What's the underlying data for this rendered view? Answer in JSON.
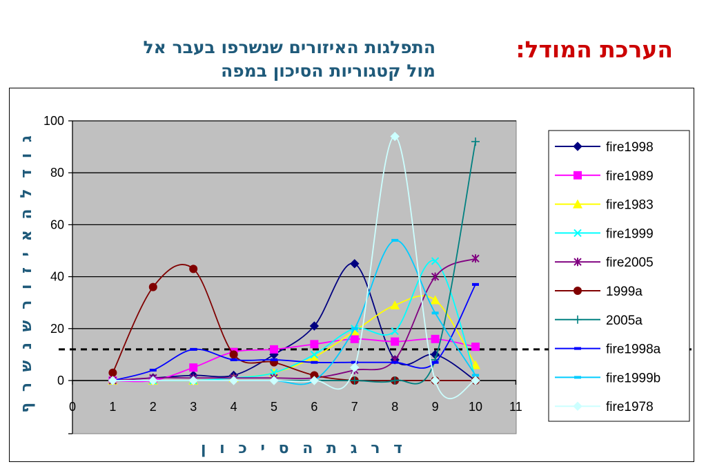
{
  "slide": {
    "title": "הערכת המודל:",
    "subtitle_line1": "התפלגות האיזורים שנשרפו בעבר אל",
    "subtitle_line2": "מול קטגוריות הסיכון במפה"
  },
  "chart_data": {
    "type": "line",
    "xlabel": "ד ר ג ת   ה ס י כ ו ן",
    "ylabel": "ג ו ד ל   ה א י ז ו ר   ש נ ש ר ף",
    "xlim": [
      0,
      11
    ],
    "ylim": [
      0,
      100
    ],
    "x_ticks": [
      "0",
      "1",
      "2",
      "3",
      "4",
      "5",
      "6",
      "7",
      "8",
      "9",
      "10",
      "11"
    ],
    "y_ticks": [
      "0",
      "20",
      "40",
      "60",
      "80",
      "100"
    ],
    "grid": true,
    "plot_background": "#c0c0c0",
    "legend_position": "right",
    "reference_line": {
      "y": 12,
      "style": "dashed",
      "color": "#000000"
    },
    "x": [
      1,
      2,
      3,
      4,
      5,
      6,
      7,
      8,
      9,
      10
    ],
    "series": [
      {
        "name": "fire1998",
        "color": "#000080",
        "marker": "diamond",
        "values": [
          0,
          1,
          2,
          2,
          10,
          21,
          45,
          8,
          10,
          0
        ]
      },
      {
        "name": "fire1989",
        "color": "#ff00ff",
        "marker": "square",
        "values": [
          0,
          0,
          5,
          11,
          12,
          14,
          16,
          15,
          16,
          13
        ]
      },
      {
        "name": "fire1983",
        "color": "#ffff00",
        "marker": "triangle",
        "values": [
          0,
          0,
          0,
          1,
          3,
          9,
          19,
          29,
          31,
          6
        ]
      },
      {
        "name": "fire1999",
        "color": "#00ffff",
        "marker": "x",
        "values": [
          0,
          0,
          0,
          1,
          3,
          10,
          20,
          19,
          46,
          1
        ]
      },
      {
        "name": "fire2005",
        "color": "#800080",
        "marker": "star",
        "values": [
          0,
          1,
          1,
          1,
          1,
          1,
          4,
          8,
          40,
          47
        ]
      },
      {
        "name": "1999a",
        "color": "#800000",
        "marker": "circle",
        "values": [
          3,
          36,
          43,
          10,
          7,
          2,
          0,
          0,
          0,
          0
        ]
      },
      {
        "name": "2005a",
        "color": "#008080",
        "marker": "plus",
        "values": [
          0,
          0,
          0,
          0,
          0,
          0,
          0,
          0,
          8,
          92
        ]
      },
      {
        "name": "fire1998a",
        "color": "#0000ff",
        "marker": "dash",
        "values": [
          0,
          4,
          12,
          8,
          8,
          7,
          7,
          7,
          7,
          37
        ]
      },
      {
        "name": "fire1999b",
        "color": "#00ccff",
        "marker": "dash",
        "values": [
          0,
          0,
          0,
          0,
          0,
          0,
          20,
          54,
          26,
          2
        ]
      },
      {
        "name": "fire1978",
        "color": "#ccffff",
        "marker": "diamond",
        "values": [
          0,
          0,
          0,
          0,
          0,
          0,
          5,
          94,
          0,
          0
        ]
      }
    ]
  }
}
